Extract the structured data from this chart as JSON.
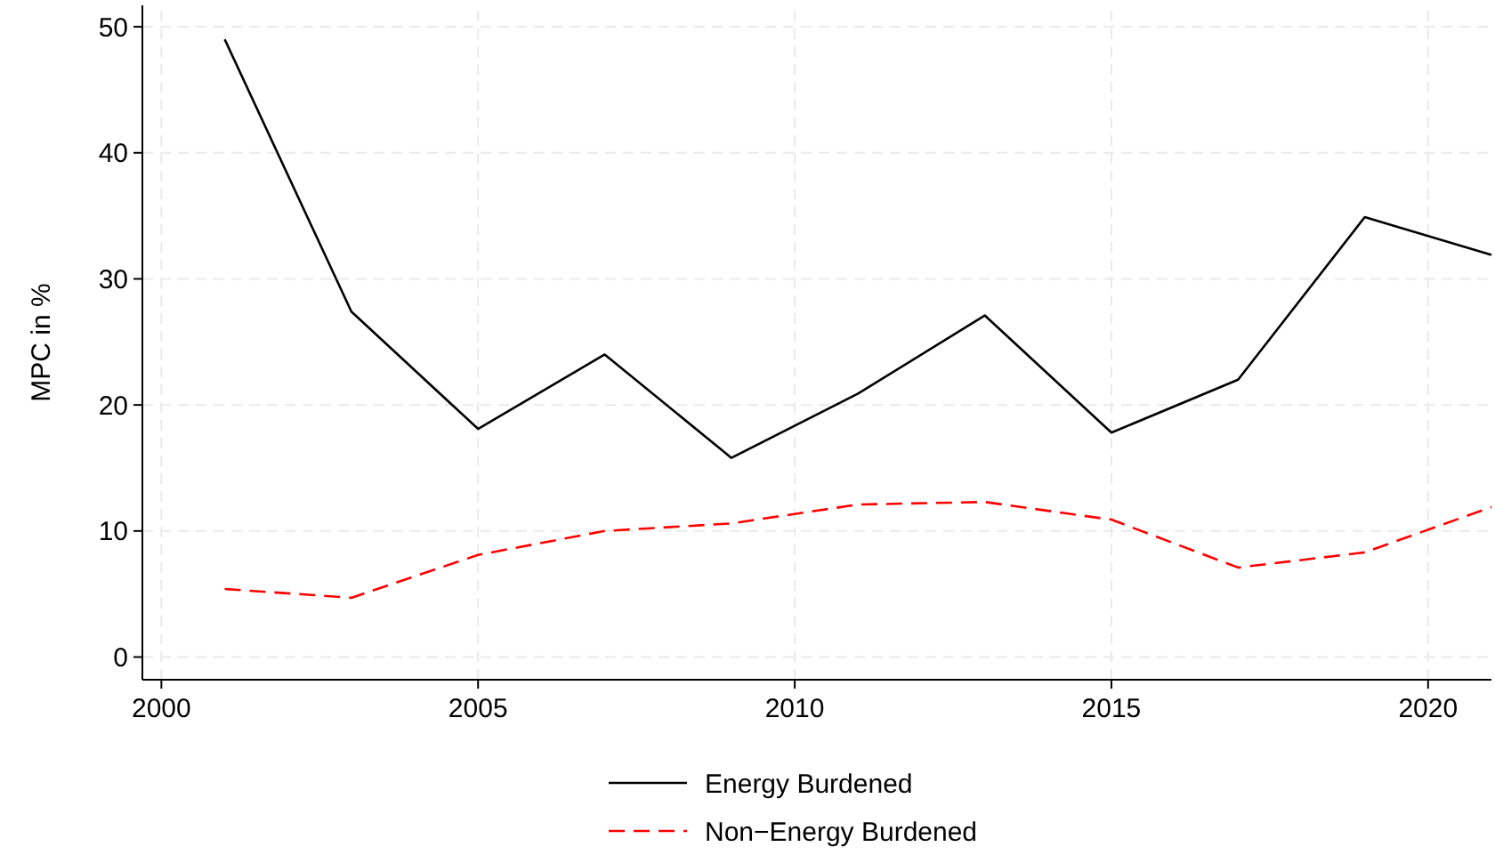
{
  "chart_data": {
    "type": "line",
    "ylabel": "MPC in %",
    "x": [
      2001,
      2003,
      2005,
      2007,
      2009,
      2011,
      2013,
      2015,
      2017,
      2019,
      2021
    ],
    "series": [
      {
        "name": "Energy Burdened",
        "color": "#000000",
        "line_style": "solid",
        "values": [
          49.0,
          27.4,
          18.1,
          24.0,
          15.8,
          20.9,
          27.1,
          17.8,
          22.0,
          34.9,
          31.9
        ]
      },
      {
        "name": "Non−Energy Burdened",
        "color": "#ff0000",
        "line_style": "dashed",
        "values": [
          5.4,
          4.7,
          8.1,
          10.0,
          10.6,
          12.1,
          12.3,
          10.9,
          7.1,
          8.3,
          11.9
        ]
      }
    ],
    "xlim": [
      1999.7,
      2021
    ],
    "xticks": [
      2000,
      2005,
      2010,
      2015,
      2020
    ],
    "ylim": [
      -1.8,
      51.7
    ],
    "yticks": [
      0,
      10,
      20,
      30,
      40,
      50
    ],
    "grid": true,
    "legend": "bottom",
    "marker": "none"
  }
}
